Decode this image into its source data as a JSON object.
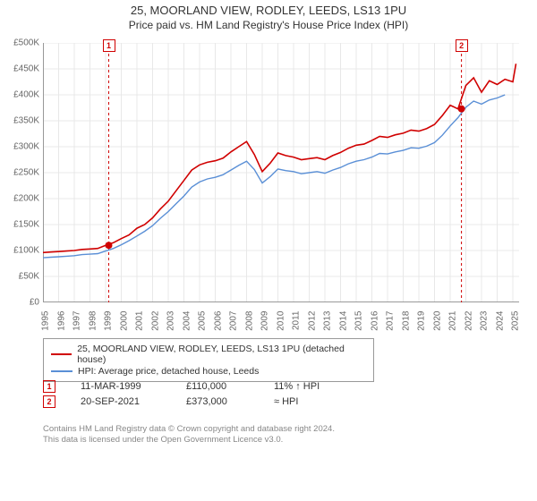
{
  "title": {
    "main": "25, MOORLAND VIEW, RODLEY, LEEDS, LS13 1PU",
    "sub": "Price paid vs. HM Land Registry's House Price Index (HPI)",
    "main_fontsize": 13,
    "sub_fontsize": 12,
    "color": "#333333"
  },
  "chart": {
    "type": "line",
    "background_color": "#ffffff",
    "grid_color": "#e8e8e8",
    "grid_on": true,
    "x": {
      "min": 1995,
      "max": 2025.4,
      "ticks": [
        1995,
        1996,
        1997,
        1998,
        1999,
        2000,
        2001,
        2002,
        2003,
        2004,
        2005,
        2006,
        2007,
        2008,
        2009,
        2010,
        2011,
        2012,
        2013,
        2014,
        2015,
        2016,
        2017,
        2018,
        2019,
        2020,
        2021,
        2022,
        2023,
        2024,
        2025
      ],
      "tick_labels": [
        "1995",
        "1996",
        "1997",
        "1998",
        "1999",
        "2000",
        "2001",
        "2002",
        "2003",
        "2004",
        "2005",
        "2006",
        "2007",
        "2008",
        "2009",
        "2010",
        "2011",
        "2012",
        "2013",
        "2014",
        "2015",
        "2016",
        "2017",
        "2018",
        "2019",
        "2020",
        "2021",
        "2022",
        "2023",
        "2024",
        "2025"
      ],
      "tick_fontsize": 10,
      "tick_rotation_deg": -90,
      "tick_color": "#666666"
    },
    "y": {
      "min": 0,
      "max": 500000,
      "ticks": [
        0,
        50000,
        100000,
        150000,
        200000,
        250000,
        300000,
        350000,
        400000,
        450000,
        500000
      ],
      "tick_labels": [
        "£0",
        "£50K",
        "£100K",
        "£150K",
        "£200K",
        "£250K",
        "£300K",
        "£350K",
        "£400K",
        "£450K",
        "£500K"
      ],
      "tick_fontsize": 10,
      "tick_color": "#666666"
    },
    "series": [
      {
        "name": "25, MOORLAND VIEW, RODLEY, LEEDS, LS13 1PU (detached house)",
        "color": "#d00000",
        "line_width": 1.6,
        "x": [
          1995,
          1995.5,
          1996,
          1996.5,
          1997,
          1997.5,
          1998,
          1998.5,
          1999,
          1999.5,
          2000,
          2000.5,
          2001,
          2001.5,
          2002,
          2002.5,
          2003,
          2003.5,
          2004,
          2004.5,
          2005,
          2005.5,
          2006,
          2006.5,
          2007,
          2007.5,
          2008,
          2008.5,
          2009,
          2009.5,
          2010,
          2010.5,
          2011,
          2011.5,
          2012,
          2012.5,
          2013,
          2013.5,
          2014,
          2014.5,
          2015,
          2015.5,
          2016,
          2016.5,
          2017,
          2017.5,
          2018,
          2018.5,
          2019,
          2019.5,
          2020,
          2020.5,
          2021,
          2021.5,
          2022,
          2022.5,
          2023,
          2023.5,
          2024,
          2024.5,
          2025,
          2025.2
        ],
        "y": [
          96000,
          97000,
          98000,
          99000,
          100000,
          102000,
          103000,
          104000,
          110000,
          115000,
          123000,
          130000,
          143000,
          150000,
          163000,
          180000,
          195000,
          215000,
          235000,
          255000,
          265000,
          270000,
          273000,
          278000,
          290000,
          300000,
          310000,
          285000,
          252000,
          268000,
          288000,
          283000,
          280000,
          275000,
          277000,
          279000,
          275000,
          283000,
          289000,
          297000,
          303000,
          305000,
          312000,
          320000,
          318000,
          323000,
          326000,
          332000,
          330000,
          335000,
          343000,
          360000,
          380000,
          373000,
          418000,
          433000,
          405000,
          427000,
          420000,
          430000,
          425000,
          460000
        ]
      },
      {
        "name": "HPI: Average price, detached house, Leeds",
        "color": "#5a8fd6",
        "line_width": 1.4,
        "x": [
          1995,
          1995.5,
          1996,
          1996.5,
          1997,
          1997.5,
          1998,
          1998.5,
          1999,
          1999.5,
          2000,
          2000.5,
          2001,
          2001.5,
          2002,
          2002.5,
          2003,
          2003.5,
          2004,
          2004.5,
          2005,
          2005.5,
          2006,
          2006.5,
          2007,
          2007.5,
          2008,
          2008.5,
          2009,
          2009.5,
          2010,
          2010.5,
          2011,
          2011.5,
          2012,
          2012.5,
          2013,
          2013.5,
          2014,
          2014.5,
          2015,
          2015.5,
          2016,
          2016.5,
          2017,
          2017.5,
          2018,
          2018.5,
          2019,
          2019.5,
          2020,
          2020.5,
          2021,
          2021.5,
          2022,
          2022.5,
          2023,
          2023.5,
          2024,
          2024.5
        ],
        "y": [
          86000,
          87000,
          88000,
          89000,
          90000,
          92000,
          93000,
          94000,
          99000,
          104000,
          111000,
          119000,
          128000,
          137000,
          148000,
          162000,
          175000,
          190000,
          205000,
          222000,
          232000,
          238000,
          241000,
          246000,
          255000,
          264000,
          272000,
          256000,
          230000,
          242000,
          257000,
          254000,
          252000,
          248000,
          250000,
          252000,
          249000,
          255000,
          260000,
          267000,
          272000,
          275000,
          280000,
          287000,
          286000,
          290000,
          293000,
          298000,
          297000,
          301000,
          308000,
          322000,
          340000,
          356000,
          376000,
          388000,
          382000,
          390000,
          394000,
          400000
        ]
      }
    ],
    "sale_markers": [
      {
        "label": "1",
        "x": 1999.2,
        "y": 110000,
        "dot_color": "#d00000",
        "vline_color": "#d00000",
        "vline_dash": "3,3"
      },
      {
        "label": "2",
        "x": 2021.72,
        "y": 373000,
        "dot_color": "#d00000",
        "vline_color": "#d00000",
        "vline_dash": "3,3"
      }
    ],
    "marker_dot_radius": 4
  },
  "legend": {
    "border_color": "#999999",
    "fontsize": 10.5,
    "items": [
      {
        "color": "#d00000",
        "label": "25, MOORLAND VIEW, RODLEY, LEEDS, LS13 1PU (detached house)"
      },
      {
        "color": "#5a8fd6",
        "label": "HPI: Average price, detached house, Leeds"
      }
    ]
  },
  "sales_table": {
    "fontsize": 11,
    "rows": [
      {
        "marker": "1",
        "date": "11-MAR-1999",
        "price": "£110,000",
        "hpi_rel": "11% ↑ HPI"
      },
      {
        "marker": "2",
        "date": "20-SEP-2021",
        "price": "£373,000",
        "hpi_rel": "≈ HPI"
      }
    ]
  },
  "footer": {
    "line1": "Contains HM Land Registry data © Crown copyright and database right 2024.",
    "line2": "This data is licensed under the Open Government Licence v3.0.",
    "fontsize": 9.5,
    "color": "#888888"
  }
}
